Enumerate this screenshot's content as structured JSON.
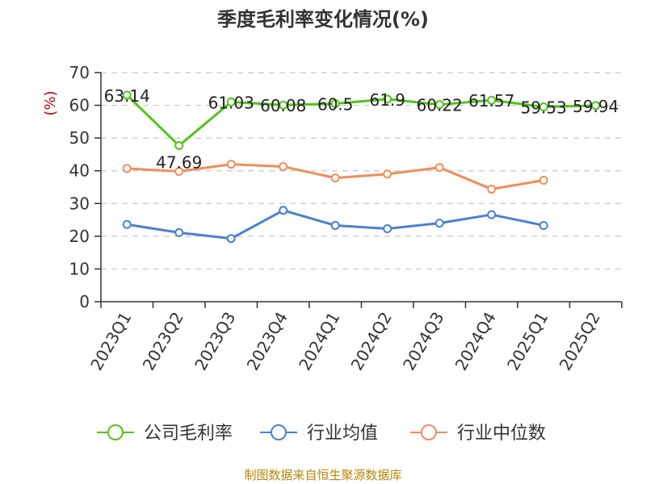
{
  "chart_data": {
    "type": "line",
    "title": "季度毛利率变化情况(%)",
    "ylabel": "(%)",
    "ylim": [
      0,
      70
    ],
    "yticks": [
      0,
      10,
      20,
      30,
      40,
      50,
      60,
      70
    ],
    "categories": [
      "2023Q1",
      "2023Q2",
      "2023Q3",
      "2023Q4",
      "2024Q1",
      "2024Q2",
      "2024Q3",
      "2024Q4",
      "2025Q1",
      "2025Q2"
    ],
    "grid": true,
    "legend_position": "bottom",
    "series": [
      {
        "name": "公司毛利率",
        "color": "#52c41a",
        "values": [
          63.14,
          47.69,
          61.03,
          60.08,
          60.5,
          61.9,
          60.22,
          61.57,
          59.53,
          59.94
        ],
        "labels": [
          "63.14",
          "47.69",
          "61.03",
          "60.08",
          "60.5",
          "61.9",
          "60.22",
          "61.57",
          "59.53",
          "59.94"
        ]
      },
      {
        "name": "行业均值",
        "color": "#4a7fd4",
        "values": [
          23.6,
          21.1,
          19.3,
          27.9,
          23.3,
          22.3,
          24.0,
          26.6,
          23.3,
          null
        ]
      },
      {
        "name": "行业中位数",
        "color": "#f28c5a",
        "values": [
          40.7,
          39.8,
          42.0,
          41.3,
          37.8,
          39.0,
          41.0,
          34.4,
          37.1,
          null
        ]
      }
    ]
  },
  "footer": {
    "source": "制图数据来自恒生聚源数据库"
  }
}
